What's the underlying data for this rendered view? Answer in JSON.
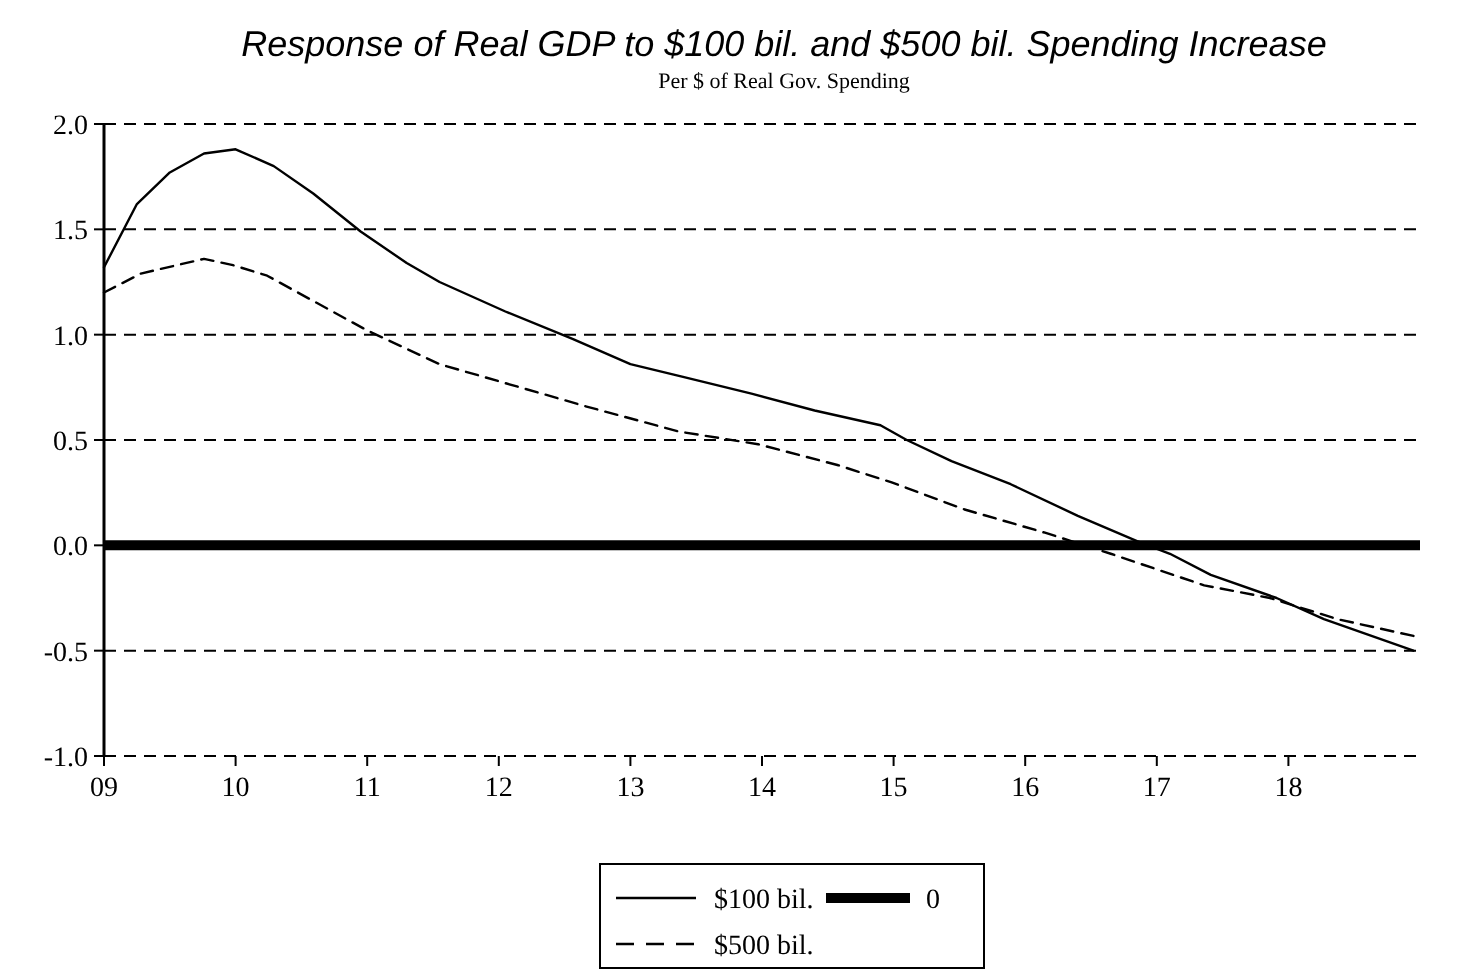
{
  "chart_data": {
    "type": "line",
    "title": "Response of Real GDP to $100 bil. and $500 bil. Spending Increase",
    "subtitle": "Per $ of Real Gov. Spending",
    "xlim": [
      2009,
      2019
    ],
    "xticks": [
      {
        "value": 2009,
        "label": "09"
      },
      {
        "value": 2010,
        "label": "10"
      },
      {
        "value": 2011,
        "label": "11"
      },
      {
        "value": 2012,
        "label": "12"
      },
      {
        "value": 2013,
        "label": "13"
      },
      {
        "value": 2014,
        "label": "14"
      },
      {
        "value": 2015,
        "label": "15"
      },
      {
        "value": 2016,
        "label": "16"
      },
      {
        "value": 2017,
        "label": "17"
      },
      {
        "value": 2018,
        "label": "18"
      }
    ],
    "ylim": [
      -1,
      2
    ],
    "yticks": [
      {
        "value": -1,
        "label": "-1.0"
      },
      {
        "value": -0.5,
        "label": "-0.5"
      },
      {
        "value": 0,
        "label": "0.0"
      },
      {
        "value": 0.5,
        "label": "0.5"
      },
      {
        "value": 1,
        "label": "1.0"
      },
      {
        "value": 1.5,
        "label": "1.5"
      },
      {
        "value": 2,
        "label": "2.0"
      }
    ],
    "grid": "y",
    "legend": "bottom",
    "marker": "none",
    "ref_lines": [
      {
        "axis": "y",
        "value": 0,
        "label": "0",
        "color": "#000000"
      }
    ],
    "series": [
      {
        "name": "$100 bil.",
        "color": "#000000",
        "line_style": "solid",
        "x": [
          2009,
          2009.25,
          2009.5,
          2009.76,
          2010,
          2010.29,
          2010.59,
          2010.95,
          2011.3,
          2011.55,
          2012.05,
          2012.56,
          2013,
          2013.4,
          2013.92,
          2014.4,
          2014.9,
          2015.1,
          2015.44,
          2015.89,
          2016.4,
          2016.85,
          2017.1,
          2017.41,
          2017.91,
          2018.27,
          2018.95
        ],
        "values": [
          1.32,
          1.62,
          1.77,
          1.86,
          1.88,
          1.8,
          1.67,
          1.49,
          1.34,
          1.25,
          1.11,
          0.98,
          0.86,
          0.8,
          0.72,
          0.64,
          0.57,
          0.5,
          0.4,
          0.29,
          0.14,
          0.02,
          -0.04,
          -0.14,
          -0.25,
          -0.35,
          -0.5
        ]
      },
      {
        "name": "$500 bil.",
        "color": "#000000",
        "line_style": "dashed",
        "x": [
          2009,
          2009.28,
          2009.76,
          2009.98,
          2010.24,
          2010.59,
          2011,
          2011.55,
          2012.05,
          2012.66,
          2013.37,
          2013.97,
          2014.58,
          2014.98,
          2015.54,
          2016.15,
          2016.65,
          2017.36,
          2017.86,
          2018.37,
          2018.95
        ],
        "values": [
          1.2,
          1.29,
          1.36,
          1.33,
          1.28,
          1.16,
          1.02,
          0.86,
          0.77,
          0.66,
          0.54,
          0.48,
          0.38,
          0.3,
          0.17,
          0.06,
          -0.04,
          -0.19,
          -0.25,
          -0.35,
          -0.43
        ]
      }
    ]
  }
}
